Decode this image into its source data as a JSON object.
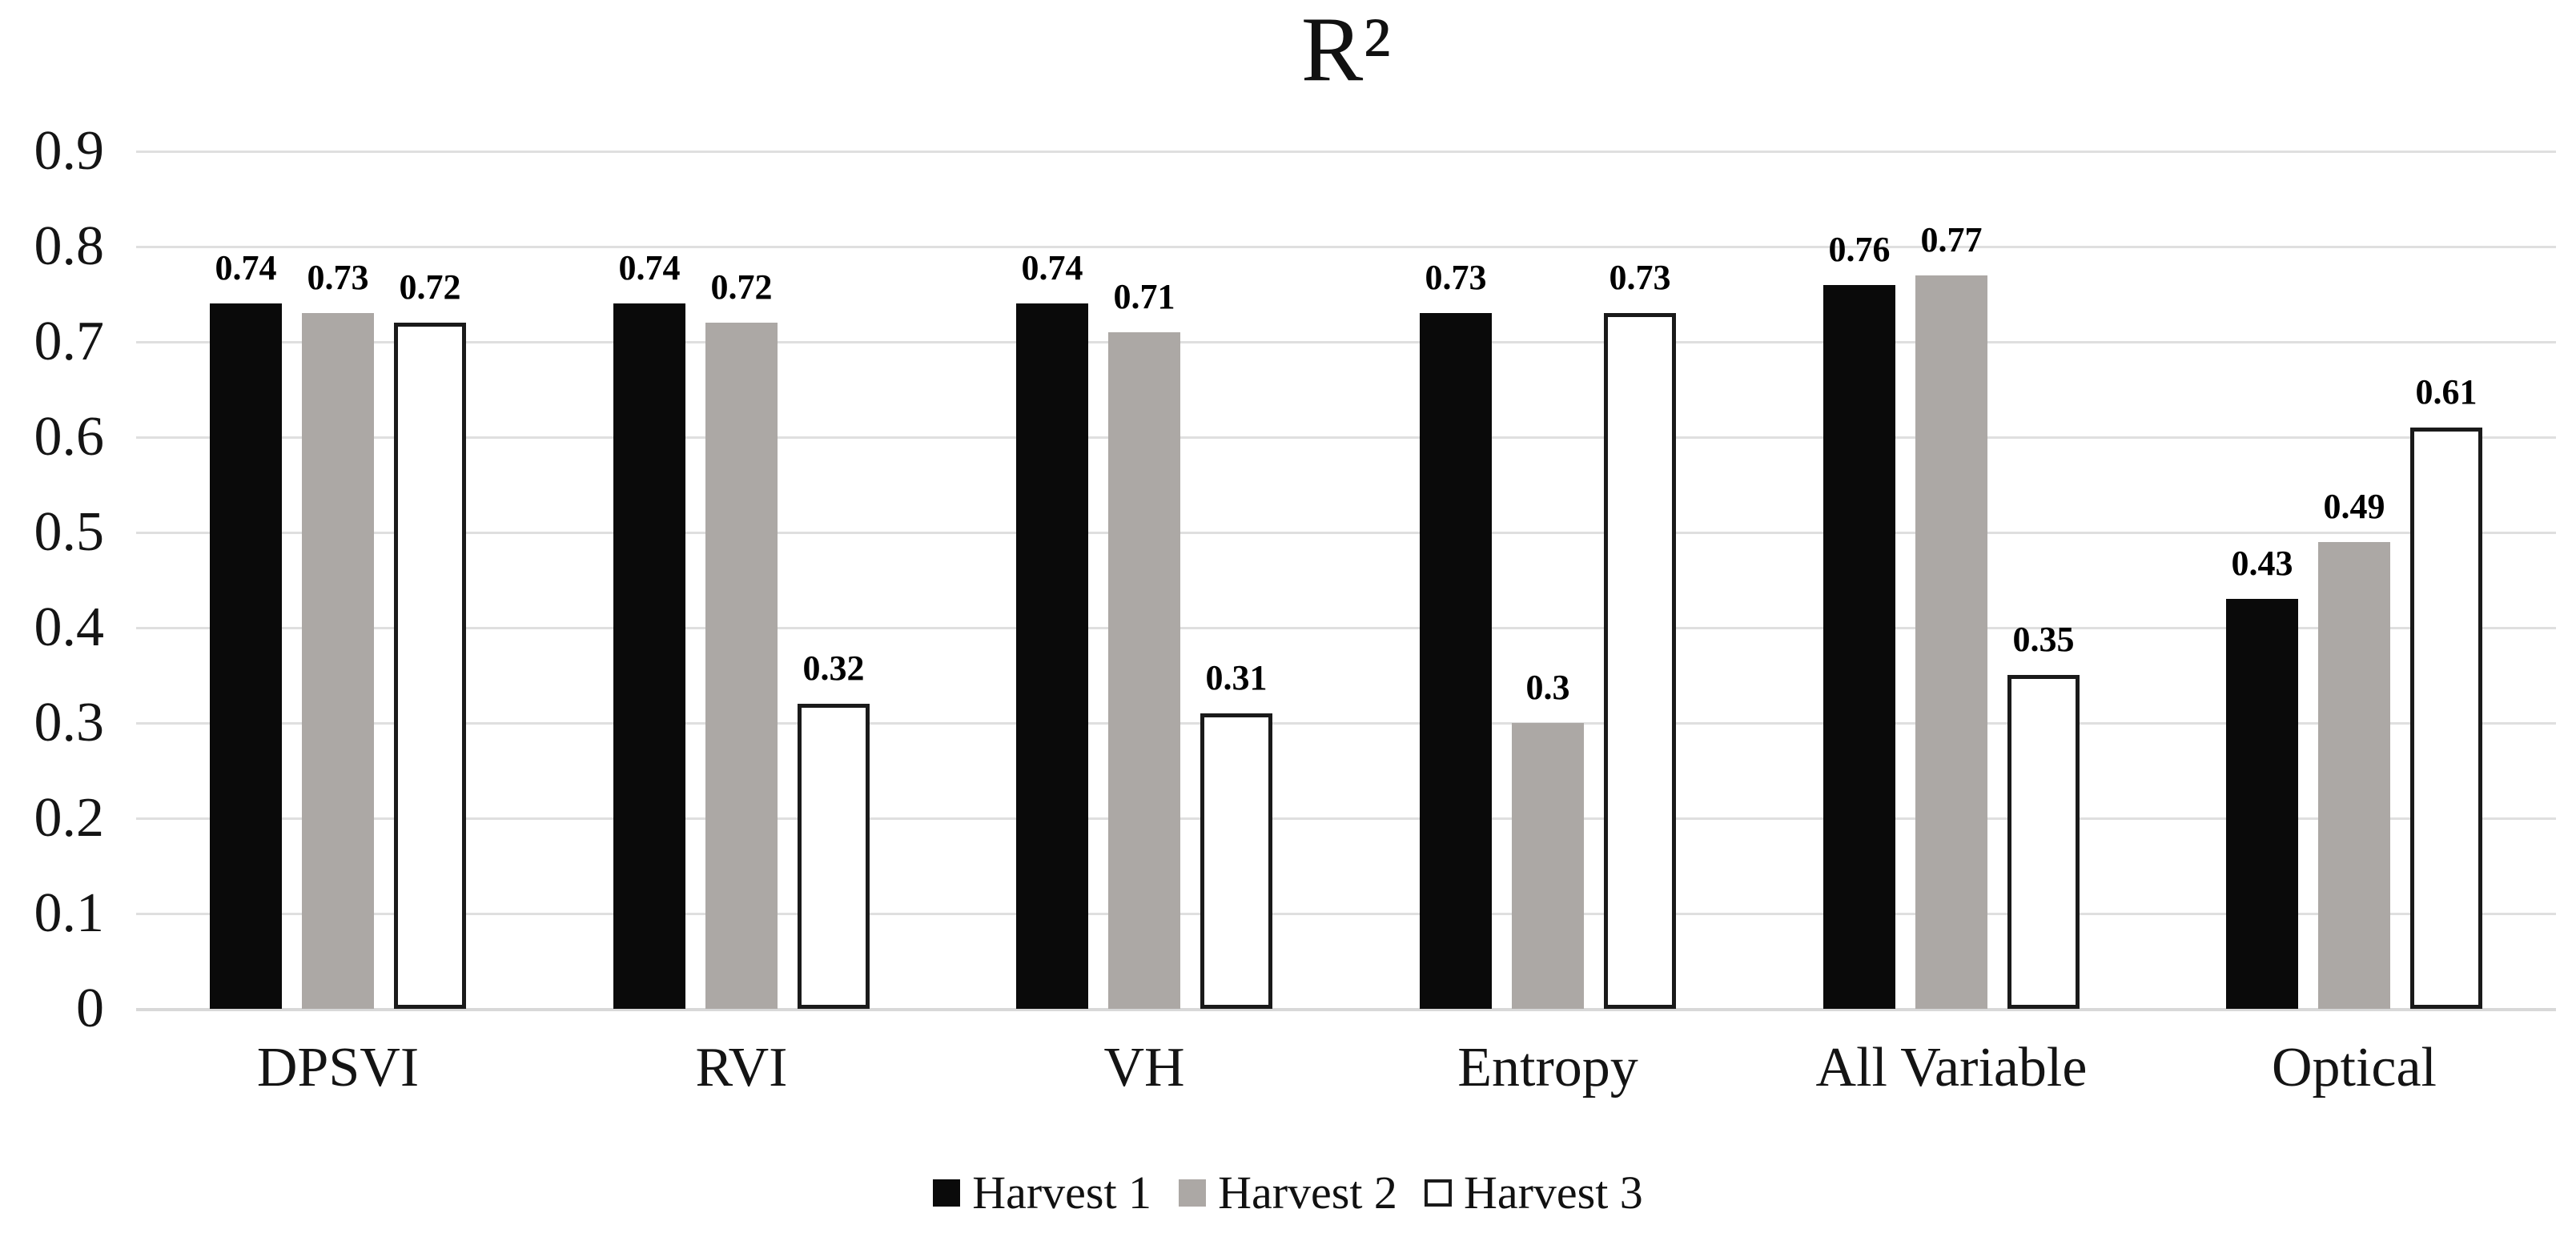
{
  "title": "R²",
  "y_axis": {
    "tick_labels": [
      "0.9",
      "0.8",
      "0.7",
      "0.6",
      "0.5",
      "0.4",
      "0.3",
      "0.2",
      "0.1",
      "0"
    ]
  },
  "legend": {
    "items": [
      {
        "label": "Harvest 1",
        "swatch": "black-filled-square"
      },
      {
        "label": "Harvest 2",
        "swatch": "gray-filled-square"
      },
      {
        "label": "Harvest 3",
        "swatch": "white-outlined-square"
      }
    ]
  },
  "colors": {
    "harvest1": "#0a0a0a",
    "harvest2": "#aca8a5",
    "harvest3_fill": "#ffffff",
    "harvest3_border": "#1a1a1a",
    "gridline": "#dfdfdf",
    "text": "#141414"
  },
  "chart_data": {
    "type": "bar",
    "title": "R²",
    "categories": [
      "DPSVI",
      "RVI",
      "VH",
      "Entropy",
      "All Variable",
      "Optical"
    ],
    "series": [
      {
        "name": "Harvest 1",
        "color": "#0a0a0a",
        "values": [
          0.74,
          0.74,
          0.74,
          0.73,
          0.76,
          0.43
        ],
        "labels": [
          "0.74",
          "0.74",
          "0.74",
          "0.73",
          "0.76",
          "0.43"
        ]
      },
      {
        "name": "Harvest 2",
        "color": "#aca8a5",
        "values": [
          0.73,
          0.72,
          0.71,
          0.3,
          0.77,
          0.49
        ],
        "labels": [
          "0.73",
          "0.72",
          "0.71",
          "0.3",
          "0.77",
          "0.49"
        ]
      },
      {
        "name": "Harvest 3",
        "color": "#ffffff",
        "border": "#1a1a1a",
        "values": [
          0.72,
          0.32,
          0.31,
          0.73,
          0.35,
          0.61
        ],
        "labels": [
          "0.72",
          "0.32",
          "0.31",
          "0.73",
          "0.35",
          "0.61"
        ]
      }
    ],
    "xlabel": "",
    "ylabel": "",
    "ylim": [
      0,
      0.9
    ],
    "ytick_step": 0.1,
    "grid": true,
    "legend_position": "bottom"
  }
}
